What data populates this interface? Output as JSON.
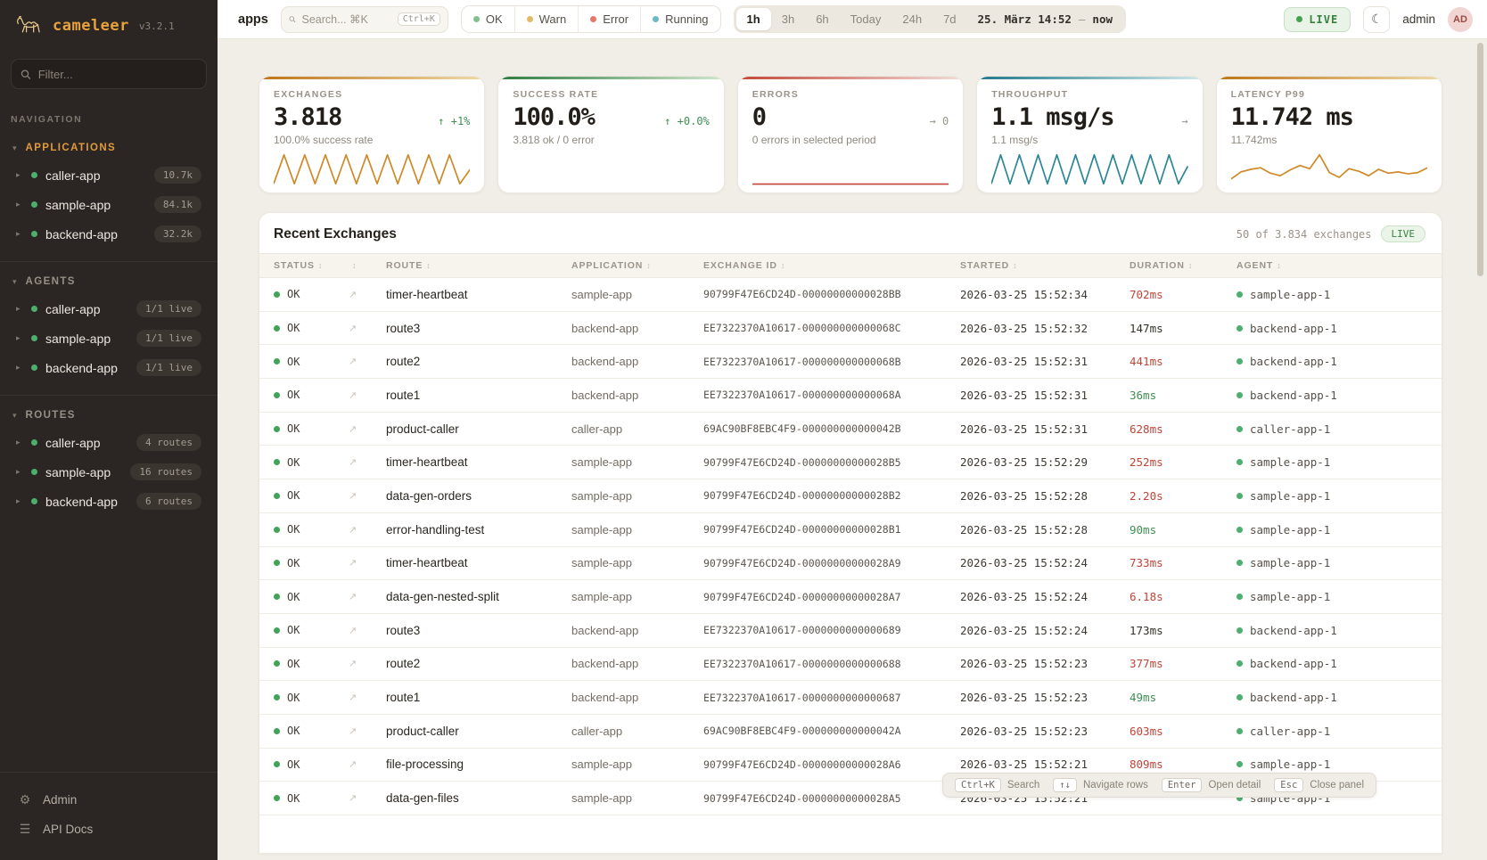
{
  "sidebar": {
    "logo": {
      "name": "cameleer",
      "version": "v3.2.1"
    },
    "filter_placeholder": "Filter...",
    "nav_label": "NAVIGATION",
    "sections": [
      {
        "label": "APPLICATIONS",
        "accent": "accent",
        "items": [
          {
            "name": "caller-app",
            "badge": "10.7k"
          },
          {
            "name": "sample-app",
            "badge": "84.1k"
          },
          {
            "name": "backend-app",
            "badge": "32.2k"
          }
        ]
      },
      {
        "label": "AGENTS",
        "accent": "",
        "items": [
          {
            "name": "caller-app",
            "badge": "1/1 live"
          },
          {
            "name": "sample-app",
            "badge": "1/1 live"
          },
          {
            "name": "backend-app",
            "badge": "1/1 live"
          }
        ]
      },
      {
        "label": "ROUTES",
        "accent": "",
        "items": [
          {
            "name": "caller-app",
            "badge": "4 routes"
          },
          {
            "name": "sample-app",
            "badge": "16 routes"
          },
          {
            "name": "backend-app",
            "badge": "6 routes"
          }
        ]
      }
    ],
    "footer": [
      {
        "label": "Admin",
        "icon": "gear-icon",
        "glyph": "⚙"
      },
      {
        "label": "API Docs",
        "icon": "list-icon",
        "glyph": "☰"
      }
    ]
  },
  "topbar": {
    "context": "apps",
    "search": {
      "placeholder": "Search... ⌘K",
      "shortcut": "Ctrl+K"
    },
    "status_filters": [
      {
        "label": "OK",
        "color": "#84BF8E"
      },
      {
        "label": "Warn",
        "color": "#E3B964"
      },
      {
        "label": "Error",
        "color": "#E2796A"
      },
      {
        "label": "Running",
        "color": "#6DB8C2"
      }
    ],
    "ranges": [
      {
        "label": "1h",
        "cls": "active"
      },
      {
        "label": "3h",
        "cls": ""
      },
      {
        "label": "6h",
        "cls": ""
      },
      {
        "label": "Today",
        "cls": ""
      },
      {
        "label": "24h",
        "cls": ""
      },
      {
        "label": "7d",
        "cls": ""
      }
    ],
    "range_from": "25. März 14:52",
    "range_sep": "—",
    "range_to": "now",
    "live_label": "LIVE",
    "user": "admin",
    "avatar": "AD"
  },
  "cards": [
    {
      "title": "EXCHANGES",
      "value": "3.818",
      "trend": "↑ +1%",
      "trend_class": "trend-up",
      "subtitle": "100.0% success rate",
      "accent_from": "#BE7417",
      "accent_to": "#EED9A8",
      "spark": {
        "color": "#CE8A28",
        "points": [
          5,
          95,
          5,
          95,
          5,
          95,
          5,
          95,
          5,
          95,
          5,
          95,
          5,
          95,
          5,
          95,
          5,
          95,
          5,
          50
        ]
      }
    },
    {
      "title": "SUCCESS RATE",
      "value": "100.0%",
      "trend": "↑ +0.0%",
      "trend_class": "trend-up",
      "subtitle": "3.818 ok / 0 error",
      "accent_from": "#2E7D3F",
      "accent_to": "#CFE6CC",
      "spark": null
    },
    {
      "title": "ERRORS",
      "value": "0",
      "trend": "→ 0",
      "trend_class": "trend-flat",
      "subtitle": "0 errors in selected period",
      "accent_from": "#C2473A",
      "accent_to": "#F2DCD7",
      "spark": {
        "color": "#C2473A",
        "points": [
          4,
          4
        ]
      }
    },
    {
      "title": "THROUGHPUT",
      "value": "1.1 msg/s",
      "trend": "→",
      "trend_class": "trend-flat",
      "subtitle": "1.1 msg/s",
      "accent_from": "#1F7A8C",
      "accent_to": "#CFE7EA",
      "spark": {
        "color": "#2B8795",
        "points": [
          5,
          95,
          5,
          95,
          5,
          95,
          5,
          95,
          5,
          95,
          5,
          95,
          5,
          95,
          5,
          95,
          5,
          95,
          5,
          95,
          5,
          60
        ]
      }
    },
    {
      "title": "LATENCY P99",
      "value": "11.742 ms",
      "trend": "",
      "trend_class": "trend-flat",
      "subtitle": "11.742ms",
      "accent_from": "#BE7417",
      "accent_to": "#EED9A8",
      "spark": {
        "color": "#CE8A28",
        "points": [
          20,
          42,
          50,
          55,
          38,
          30,
          48,
          62,
          52,
          95,
          40,
          25,
          52,
          44,
          30,
          50,
          38,
          42,
          36,
          40,
          55
        ]
      }
    }
  ],
  "table": {
    "title": "Recent Exchanges",
    "meta": "50 of 3.834 exchanges",
    "live_badge": "LIVE",
    "columns": [
      {
        "label": "STATUS"
      },
      {
        "label": ""
      },
      {
        "label": "ROUTE"
      },
      {
        "label": "APPLICATION"
      },
      {
        "label": "EXCHANGE ID"
      },
      {
        "label": "STARTED"
      },
      {
        "label": "DURATION"
      },
      {
        "label": "AGENT"
      }
    ],
    "rows": [
      {
        "status": "OK",
        "route": "timer-heartbeat",
        "app": "sample-app",
        "xid": "90799F47E6CD24D-00000000000028BB",
        "started": "2026-03-25 15:52:34",
        "duration": "702ms",
        "dur_class": "dur-red",
        "agent": "sample-app-1"
      },
      {
        "status": "OK",
        "route": "route3",
        "app": "backend-app",
        "xid": "EE7322370A10617-000000000000068C",
        "started": "2026-03-25 15:52:32",
        "duration": "147ms",
        "dur_class": "dur-dark",
        "agent": "backend-app-1"
      },
      {
        "status": "OK",
        "route": "route2",
        "app": "backend-app",
        "xid": "EE7322370A10617-000000000000068B",
        "started": "2026-03-25 15:52:31",
        "duration": "441ms",
        "dur_class": "dur-red",
        "agent": "backend-app-1"
      },
      {
        "status": "OK",
        "route": "route1",
        "app": "backend-app",
        "xid": "EE7322370A10617-000000000000068A",
        "started": "2026-03-25 15:52:31",
        "duration": "36ms",
        "dur_class": "dur-green",
        "agent": "backend-app-1"
      },
      {
        "status": "OK",
        "route": "product-caller",
        "app": "caller-app",
        "xid": "69AC90BF8EBC4F9-000000000000042B",
        "started": "2026-03-25 15:52:31",
        "duration": "628ms",
        "dur_class": "dur-red",
        "agent": "caller-app-1"
      },
      {
        "status": "OK",
        "route": "timer-heartbeat",
        "app": "sample-app",
        "xid": "90799F47E6CD24D-00000000000028B5",
        "started": "2026-03-25 15:52:29",
        "duration": "252ms",
        "dur_class": "dur-red",
        "agent": "sample-app-1"
      },
      {
        "status": "OK",
        "route": "data-gen-orders",
        "app": "sample-app",
        "xid": "90799F47E6CD24D-00000000000028B2",
        "started": "2026-03-25 15:52:28",
        "duration": "2.20s",
        "dur_class": "dur-red",
        "agent": "sample-app-1"
      },
      {
        "status": "OK",
        "route": "error-handling-test",
        "app": "sample-app",
        "xid": "90799F47E6CD24D-00000000000028B1",
        "started": "2026-03-25 15:52:28",
        "duration": "90ms",
        "dur_class": "dur-green",
        "agent": "sample-app-1"
      },
      {
        "status": "OK",
        "route": "timer-heartbeat",
        "app": "sample-app",
        "xid": "90799F47E6CD24D-00000000000028A9",
        "started": "2026-03-25 15:52:24",
        "duration": "733ms",
        "dur_class": "dur-red",
        "agent": "sample-app-1"
      },
      {
        "status": "OK",
        "route": "data-gen-nested-split",
        "app": "sample-app",
        "xid": "90799F47E6CD24D-00000000000028A7",
        "started": "2026-03-25 15:52:24",
        "duration": "6.18s",
        "dur_class": "dur-red",
        "agent": "sample-app-1"
      },
      {
        "status": "OK",
        "route": "route3",
        "app": "backend-app",
        "xid": "EE7322370A10617-0000000000000689",
        "started": "2026-03-25 15:52:24",
        "duration": "173ms",
        "dur_class": "dur-dark",
        "agent": "backend-app-1"
      },
      {
        "status": "OK",
        "route": "route2",
        "app": "backend-app",
        "xid": "EE7322370A10617-0000000000000688",
        "started": "2026-03-25 15:52:23",
        "duration": "377ms",
        "dur_class": "dur-red",
        "agent": "backend-app-1"
      },
      {
        "status": "OK",
        "route": "route1",
        "app": "backend-app",
        "xid": "EE7322370A10617-0000000000000687",
        "started": "2026-03-25 15:52:23",
        "duration": "49ms",
        "dur_class": "dur-green",
        "agent": "backend-app-1"
      },
      {
        "status": "OK",
        "route": "product-caller",
        "app": "caller-app",
        "xid": "69AC90BF8EBC4F9-000000000000042A",
        "started": "2026-03-25 15:52:23",
        "duration": "603ms",
        "dur_class": "dur-red",
        "agent": "caller-app-1"
      },
      {
        "status": "OK",
        "route": "file-processing",
        "app": "sample-app",
        "xid": "90799F47E6CD24D-00000000000028A6",
        "started": "2026-03-25 15:52:21",
        "duration": "809ms",
        "dur_class": "dur-red",
        "agent": "sample-app-1"
      },
      {
        "status": "OK",
        "route": "data-gen-files",
        "app": "sample-app",
        "xid": "90799F47E6CD24D-00000000000028A5",
        "started": "2026-03-25 15:52:21",
        "duration": "",
        "dur_class": "dur-dark",
        "agent": "sample-app-1"
      }
    ]
  },
  "hints": [
    {
      "key": "Ctrl+K",
      "label": "Search"
    },
    {
      "key": "↑↓",
      "label": "Navigate rows"
    },
    {
      "key": "Enter",
      "label": "Open detail"
    },
    {
      "key": "Esc",
      "label": "Close panel"
    }
  ]
}
